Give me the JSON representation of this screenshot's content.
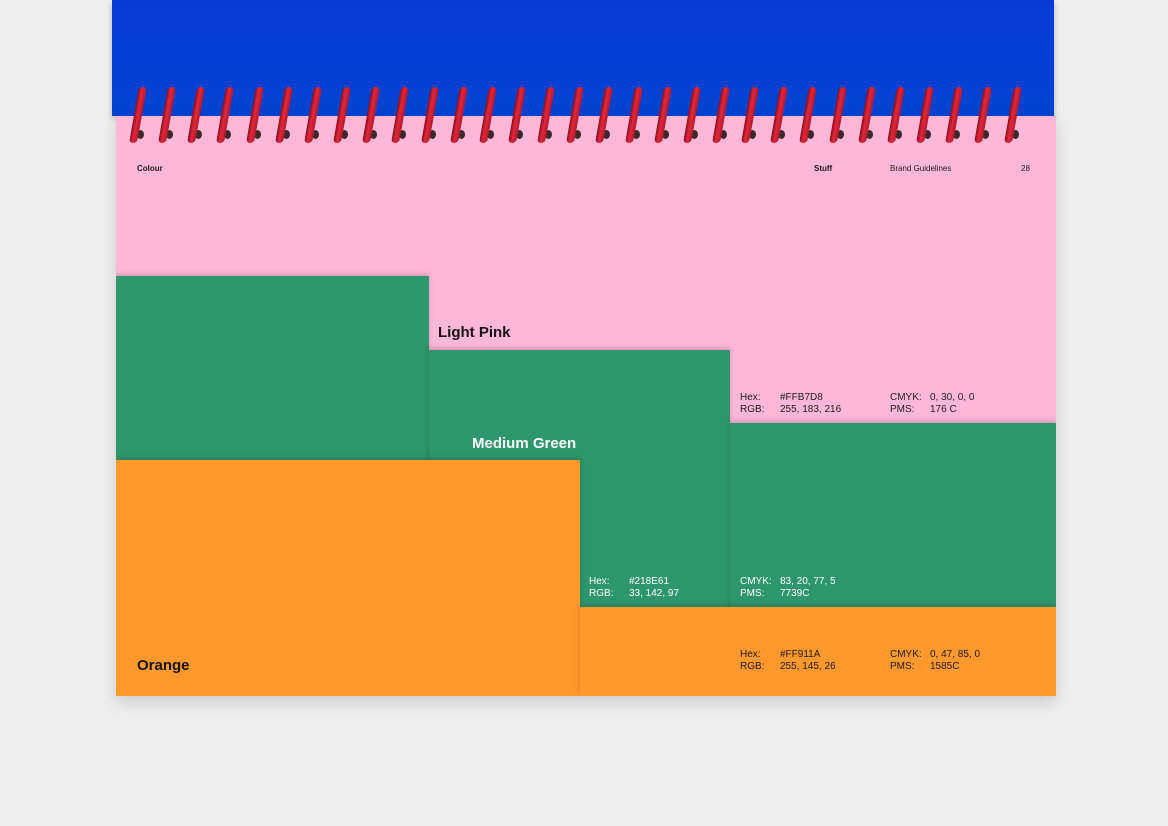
{
  "header": {
    "section": "Colour",
    "brand": "Stuff",
    "document": "Brand Guidelines",
    "page_number": "28"
  },
  "colours": [
    {
      "name": "Light Pink",
      "hex_label": "Hex:",
      "hex": "#FFB7D8",
      "rgb_label": "RGB:",
      "rgb": "255, 183, 216",
      "cmyk_label": "CMYK:",
      "cmyk": "0, 30, 0, 0",
      "pms_label": "PMS:",
      "pms": "176 C",
      "swatch_color": "#FFB7D8"
    },
    {
      "name": "Medium Green",
      "hex_label": "Hex:",
      "hex": "#218E61",
      "rgb_label": "RGB:",
      "rgb": "33, 142, 97",
      "cmyk_label": "CMYK:",
      "cmyk": "83, 20, 77, 5",
      "pms_label": "PMS:",
      "pms": "7739C",
      "swatch_color": "#218E61"
    },
    {
      "name": "Orange",
      "hex_label": "Hex:",
      "hex": "#FF911A",
      "rgb_label": "RGB:",
      "rgb": "255, 145, 26",
      "cmyk_label": "CMYK:",
      "cmyk": "0, 47, 85, 0",
      "pms_label": "PMS:",
      "pms": "1585C",
      "swatch_color": "#FF911A"
    }
  ],
  "cover_color": "#0043D0",
  "binding_color": "#D7283C"
}
